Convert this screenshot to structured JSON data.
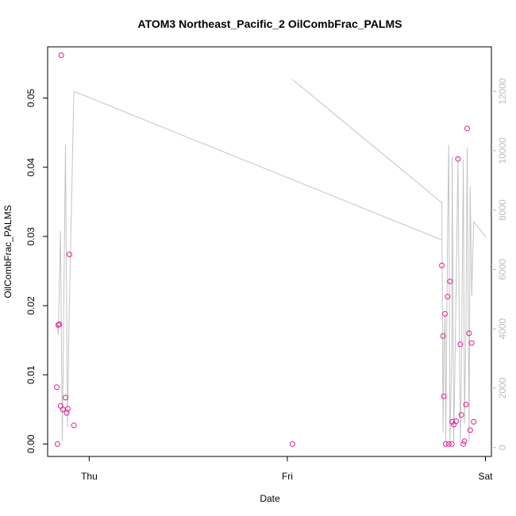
{
  "chart_data": {
    "type": "scatter",
    "title": "ATOM3 Northeast_Pacific_2 OilCombFrac_PALMS",
    "xlabel": "Date",
    "ylabel": "OilCombFrac_PALMS",
    "x_ticks": [
      {
        "value": 1.0,
        "label": "Thu"
      },
      {
        "value": 2.0,
        "label": "Fri"
      },
      {
        "value": 3.0,
        "label": "Sat"
      }
    ],
    "xlim": [
      0.79,
      3.03
    ],
    "ylim": [
      -0.0018,
      0.0574
    ],
    "y_ticks": [
      0.0,
      0.01,
      0.02,
      0.03,
      0.04,
      0.05
    ],
    "y_tick_labels": [
      "0.00",
      "0.01",
      "0.02",
      "0.03",
      "0.04",
      "0.05"
    ],
    "y2lim": [
      -300,
      13500
    ],
    "y2_ticks": [
      0,
      2000,
      4000,
      6000,
      8000,
      10000,
      12000
    ],
    "y2_tick_labels": [
      "0",
      "2000",
      "4000",
      "6000",
      "8000",
      "10000",
      "12000"
    ],
    "grid": false,
    "colors": {
      "points": "#e6199a",
      "line": "#c4c4c4",
      "axes": "#000000",
      "right_axis": "#bdbdbd"
    },
    "series": [
      {
        "axis": "left",
        "style": "points",
        "x": [
          0.8359,
          0.8397,
          0.8436,
          0.8494,
          0.8591,
          0.8552,
          0.8668,
          0.8803,
          0.8861,
          0.8919,
          0.8996,
          0.9228,
          2.0257,
          2.7801,
          2.7859,
          2.7898,
          2.7956,
          2.7994,
          2.8091,
          2.8149,
          2.8207,
          2.8304,
          2.8322,
          2.84,
          2.8516,
          2.8612,
          2.8728,
          2.8786,
          2.8883,
          2.8941,
          2.9018,
          2.9076,
          2.9173,
          2.9231,
          2.9308,
          2.9405
        ],
        "y": [
          0.0082,
          0.0,
          0.0172,
          0.0173,
          0.0562,
          0.0055,
          0.005,
          0.0067,
          0.0045,
          0.0051,
          0.0274,
          0.0027,
          0.0,
          0.0258,
          0.0156,
          0.0069,
          0.0188,
          0.0,
          0.0213,
          0.0,
          0.0235,
          0.0,
          0.0032,
          0.0028,
          0.0033,
          0.0412,
          0.0144,
          0.0042,
          0.0,
          0.0004,
          0.0057,
          0.0456,
          0.016,
          0.002,
          0.0146,
          0.0032
        ]
      },
      {
        "axis": "right",
        "style": "line",
        "segments": [
          {
            "x": [
              0.836,
              0.8436,
              0.855,
              0.864,
              0.88,
              0.89,
              0.899,
              0.9228,
              2.777
            ],
            "y": [
              4200,
              3800,
              7300,
              200,
              10200,
              700,
              4600,
              12000,
              7000
            ]
          },
          {
            "x": [
              2.0257,
              2.7801,
              2.7859,
              2.7898,
              2.7956,
              2.7994,
              2.8091,
              2.8149,
              2.8207,
              2.8304,
              2.8322,
              2.84,
              2.8516,
              2.8612,
              2.8728,
              2.8786,
              2.8883,
              2.8941,
              2.9018,
              2.9076,
              2.9173,
              2.9231,
              2.9308,
              2.9405,
              3.0021
            ],
            "y": [
              12400,
              8250,
              500,
              3200,
              4500,
              200,
              7500,
              10200,
              100,
              3400,
              9800,
              200,
              5200,
              9800,
              200,
              2500,
              9700,
              800,
              4200,
              10100,
              200,
              8800,
              5100,
              7600,
              7100
            ]
          }
        ]
      }
    ]
  }
}
